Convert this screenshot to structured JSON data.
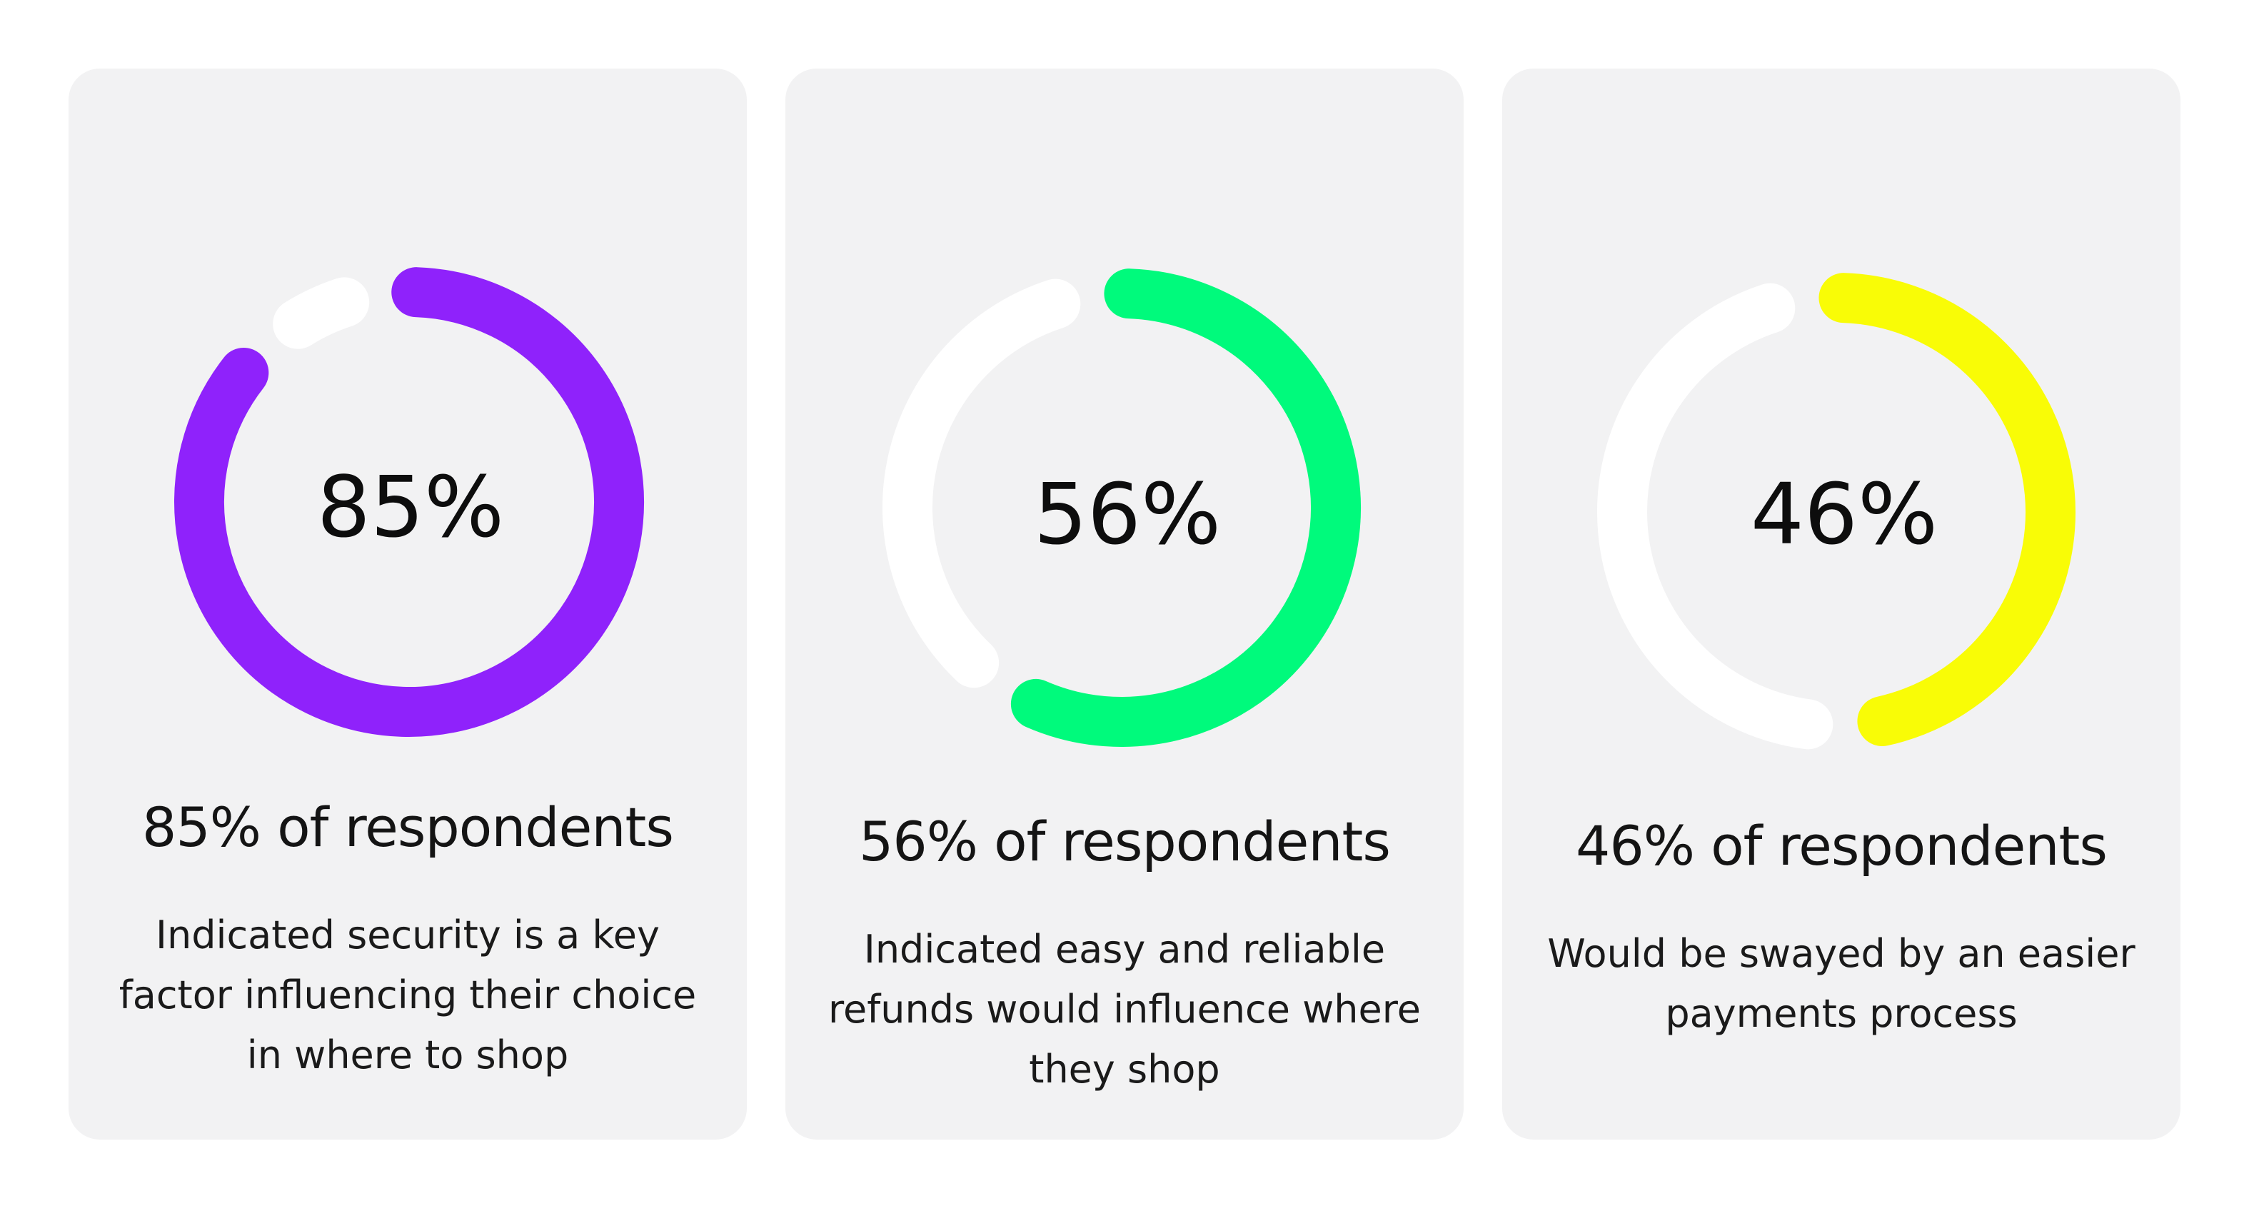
{
  "chart_data": [
    {
      "type": "donut",
      "value": 85,
      "value_label": "85%",
      "headline": "85% of respondents",
      "description": "Indicated security is a key factor influencing their choice in where to shop",
      "color": "#8f22fb",
      "track_color": "#ffffff"
    },
    {
      "type": "donut",
      "value": 56,
      "value_label": "56%",
      "headline": "56% of respondents",
      "description": "Indicated easy and reliable refunds would influence where they shop",
      "color": "#00fa7c",
      "track_color": "#ffffff"
    },
    {
      "type": "donut",
      "value": 46,
      "value_label": "46%",
      "headline": "46% of respondents",
      "description": "Would be swayed by an easier payments process",
      "color": "#f9fc06",
      "track_color": "#ffffff"
    }
  ]
}
